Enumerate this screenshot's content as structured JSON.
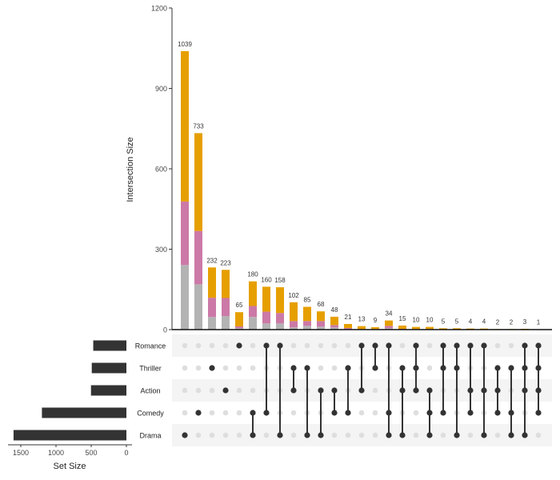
{
  "chart_data": {
    "type": "upset",
    "ylabel": "Intersection Size",
    "ylim": [
      0,
      1200
    ],
    "yticks": [
      "0",
      "300",
      "600",
      "900",
      "1200"
    ],
    "ytick_values": [
      0,
      300,
      600,
      900,
      1200
    ],
    "set_size_label": "Set Size",
    "set_size_ticks": [
      "1500",
      "1000",
      "500",
      "0"
    ],
    "set_size_tick_values": [
      1500,
      1000,
      500,
      0
    ],
    "sets": [
      "Romance",
      "Thriller",
      "Action",
      "Comedy",
      "Drama"
    ],
    "set_sizes": [
      471,
      492,
      503,
      1200,
      1603
    ],
    "stack_colors": [
      "#B3B3B3",
      "#CC79A7",
      "#E69F00"
    ],
    "intersections": [
      {
        "sets": [
          "Drama"
        ],
        "size": 1039,
        "stack": [
          241,
          237,
          561
        ]
      },
      {
        "sets": [
          "Comedy"
        ],
        "size": 733,
        "stack": [
          169,
          199,
          365
        ]
      },
      {
        "sets": [
          "Thriller"
        ],
        "size": 232,
        "stack": [
          47,
          72,
          113
        ]
      },
      {
        "sets": [
          "Action"
        ],
        "size": 223,
        "stack": [
          50,
          68,
          105
        ]
      },
      {
        "sets": [
          "Romance"
        ],
        "size": 65,
        "stack": [
          5,
          7,
          53
        ]
      },
      {
        "sets": [
          "Comedy",
          "Drama"
        ],
        "size": 180,
        "stack": [
          47,
          41,
          92
        ]
      },
      {
        "sets": [
          "Romance",
          "Comedy"
        ],
        "size": 160,
        "stack": [
          23,
          44,
          93
        ]
      },
      {
        "sets": [
          "Romance",
          "Drama"
        ],
        "size": 158,
        "stack": [
          23,
          39,
          96
        ]
      },
      {
        "sets": [
          "Thriller",
          "Action"
        ],
        "size": 102,
        "stack": [
          8,
          24,
          70
        ]
      },
      {
        "sets": [
          "Thriller",
          "Drama"
        ],
        "size": 85,
        "stack": [
          14,
          18,
          53
        ]
      },
      {
        "sets": [
          "Action",
          "Drama"
        ],
        "size": 68,
        "stack": [
          11,
          21,
          36
        ]
      },
      {
        "sets": [
          "Action",
          "Comedy"
        ],
        "size": 48,
        "stack": [
          8,
          9,
          31
        ]
      },
      {
        "sets": [
          "Thriller",
          "Comedy"
        ],
        "size": 21,
        "stack": [
          2,
          4,
          15
        ]
      },
      {
        "sets": [
          "Romance",
          "Action"
        ],
        "size": 13,
        "stack": [
          1,
          1,
          11
        ]
      },
      {
        "sets": [
          "Romance",
          "Thriller"
        ],
        "size": 9,
        "stack": [
          1,
          1,
          7
        ]
      },
      {
        "sets": [
          "Romance",
          "Comedy",
          "Drama"
        ],
        "size": 34,
        "stack": [
          5,
          9,
          20
        ]
      },
      {
        "sets": [
          "Thriller",
          "Action",
          "Drama"
        ],
        "size": 15,
        "stack": [
          1,
          2,
          12
        ]
      },
      {
        "sets": [
          "Romance",
          "Thriller",
          "Action"
        ],
        "size": 10,
        "stack": [
          1,
          1,
          8
        ]
      },
      {
        "sets": [
          "Action",
          "Comedy",
          "Drama"
        ],
        "size": 10,
        "stack": [
          1,
          1,
          8
        ]
      },
      {
        "sets": [
          "Romance",
          "Thriller",
          "Comedy"
        ],
        "size": 5,
        "stack": [
          0,
          0,
          5
        ]
      },
      {
        "sets": [
          "Romance",
          "Thriller",
          "Drama"
        ],
        "size": 5,
        "stack": [
          0,
          0,
          5
        ]
      },
      {
        "sets": [
          "Romance",
          "Action",
          "Comedy"
        ],
        "size": 4,
        "stack": [
          0,
          0,
          4
        ]
      },
      {
        "sets": [
          "Romance",
          "Action",
          "Drama"
        ],
        "size": 4,
        "stack": [
          0,
          0,
          4
        ]
      },
      {
        "sets": [
          "Thriller",
          "Action",
          "Comedy"
        ],
        "size": 2,
        "stack": [
          0,
          0,
          2
        ]
      },
      {
        "sets": [
          "Thriller",
          "Comedy",
          "Drama"
        ],
        "size": 2,
        "stack": [
          0,
          0,
          2
        ]
      },
      {
        "sets": [
          "Romance",
          "Thriller",
          "Action",
          "Drama"
        ],
        "size": 3,
        "stack": [
          0,
          0,
          3
        ]
      },
      {
        "sets": [
          "Romance",
          "Thriller",
          "Action",
          "Comedy"
        ],
        "size": 1,
        "stack": [
          0,
          0,
          1
        ]
      }
    ],
    "grid": false,
    "legend": "none"
  }
}
